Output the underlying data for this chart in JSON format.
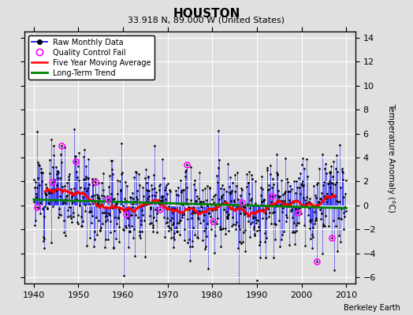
{
  "title": "HOUSTON",
  "subtitle": "33.918 N, 89.000 W (United States)",
  "attribution": "Berkeley Earth",
  "ylabel": "Temperature Anomaly (°C)",
  "xlim": [
    1938,
    2012
  ],
  "ylim": [
    -6.5,
    14.5
  ],
  "yticks": [
    -6,
    -4,
    -2,
    0,
    2,
    4,
    6,
    8,
    10,
    12,
    14
  ],
  "xticks": [
    1940,
    1950,
    1960,
    1970,
    1980,
    1990,
    2000,
    2010
  ],
  "bg_color": "#e0e0e0",
  "raw_line_color": "blue",
  "raw_dot_color": "black",
  "qc_fail_color": "magenta",
  "moving_avg_color": "red",
  "trend_color": "green",
  "seed": 12
}
